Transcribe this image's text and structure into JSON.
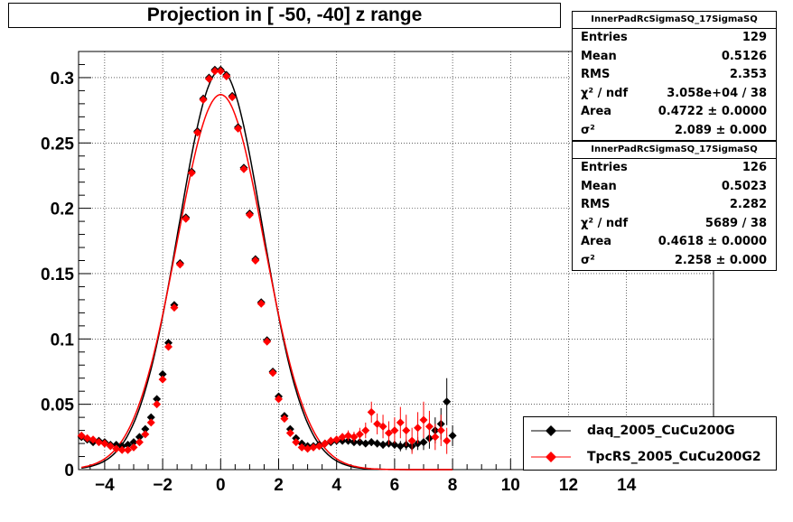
{
  "title": "Projection in [ -50, -40] z range",
  "stats": [
    {
      "header": "InnerPadRcSigmaSQ_17SigmaSQ",
      "rows": [
        {
          "label": "Entries",
          "value": "129"
        },
        {
          "label": "Mean",
          "value": "0.5126"
        },
        {
          "label": "RMS",
          "value": "2.353"
        },
        {
          "label": "χ² / ndf",
          "value": "3.058e+04 / 38"
        },
        {
          "label": "Area",
          "value": "0.4722 ± 0.0000"
        },
        {
          "label": "σ²",
          "value": "2.089 ± 0.000"
        }
      ]
    },
    {
      "header": "InnerPadRcSigmaSQ_17SigmaSQ",
      "rows": [
        {
          "label": "Entries",
          "value": "126"
        },
        {
          "label": "Mean",
          "value": "0.5023"
        },
        {
          "label": "RMS",
          "value": "2.282"
        },
        {
          "label": "χ² / ndf",
          "value": "5689 / 38"
        },
        {
          "label": "Area",
          "value": "0.4618 ± 0.0000"
        },
        {
          "label": "σ²",
          "value": "2.258 ± 0.000"
        }
      ]
    }
  ],
  "legend": [
    {
      "name": "daq_2005_CuCu200G",
      "color": "#000000"
    },
    {
      "name": "TpcRS_2005_CuCu200G2",
      "color": "#ff0000"
    }
  ],
  "chart_data": {
    "type": "scatter",
    "title": "Projection in [ -50, -40] z range",
    "xlabel": "",
    "ylabel": "",
    "xlim": [
      -4.9,
      17
    ],
    "ylim": [
      0,
      0.32
    ],
    "grid": true,
    "legend_position": "bottom-right",
    "x_ticks": [
      -4,
      -2,
      0,
      2,
      4,
      6,
      8,
      10,
      12,
      14
    ],
    "y_ticks": [
      0,
      0.05,
      0.1,
      0.15,
      0.2,
      0.25,
      0.3
    ],
    "y_tick_labels": [
      "0",
      "0.05",
      "0.1",
      "0.15",
      "0.2",
      "0.25",
      "0.3"
    ],
    "series": [
      {
        "name": "daq_2005_CuCu200G",
        "color": "#000000",
        "x": [
          -4.8,
          -4.6,
          -4.4,
          -4.2,
          -4.0,
          -3.8,
          -3.6,
          -3.4,
          -3.2,
          -3.0,
          -2.8,
          -2.6,
          -2.4,
          -2.2,
          -2.0,
          -1.8,
          -1.6,
          -1.4,
          -1.2,
          -1.0,
          -0.8,
          -0.6,
          -0.4,
          -0.2,
          0.0,
          0.2,
          0.4,
          0.6,
          0.8,
          1.0,
          1.2,
          1.4,
          1.6,
          1.8,
          2.0,
          2.2,
          2.4,
          2.6,
          2.8,
          3.0,
          3.2,
          3.4,
          3.6,
          3.8,
          4.0,
          4.2,
          4.4,
          4.6,
          4.8,
          5.0,
          5.2,
          5.4,
          5.6,
          5.8,
          6.0,
          6.2,
          6.4,
          6.6,
          6.8,
          7.0,
          7.2,
          7.4,
          7.6,
          7.8,
          8.0
        ],
        "y": [
          0.025,
          0.023,
          0.021,
          0.022,
          0.021,
          0.019,
          0.019,
          0.018,
          0.019,
          0.021,
          0.025,
          0.031,
          0.04,
          0.054,
          0.073,
          0.097,
          0.126,
          0.158,
          0.193,
          0.228,
          0.259,
          0.284,
          0.3,
          0.306,
          0.306,
          0.302,
          0.286,
          0.262,
          0.231,
          0.196,
          0.161,
          0.128,
          0.099,
          0.075,
          0.056,
          0.041,
          0.031,
          0.024,
          0.02,
          0.018,
          0.018,
          0.019,
          0.02,
          0.021,
          0.022,
          0.022,
          0.022,
          0.021,
          0.021,
          0.02,
          0.021,
          0.02,
          0.019,
          0.02,
          0.019,
          0.018,
          0.019,
          0.018,
          0.02,
          0.021,
          0.024,
          0.03,
          0.035,
          0.052,
          0.026
        ],
        "err": [
          0.002,
          0.002,
          0.002,
          0.002,
          0.002,
          0.002,
          0.002,
          0.002,
          0.002,
          0.002,
          0.002,
          0.002,
          0.002,
          0.002,
          0.002,
          0.002,
          0.002,
          0.002,
          0.002,
          0.002,
          0.002,
          0.002,
          0.002,
          0.002,
          0.002,
          0.002,
          0.002,
          0.002,
          0.002,
          0.002,
          0.002,
          0.002,
          0.002,
          0.002,
          0.002,
          0.002,
          0.002,
          0.002,
          0.002,
          0.002,
          0.002,
          0.002,
          0.002,
          0.002,
          0.002,
          0.002,
          0.002,
          0.002,
          0.002,
          0.002,
          0.003,
          0.003,
          0.003,
          0.003,
          0.003,
          0.004,
          0.004,
          0.004,
          0.005,
          0.006,
          0.008,
          0.01,
          0.012,
          0.018,
          0.008
        ]
      },
      {
        "name": "TpcRS_2005_CuCu200G2",
        "color": "#ff0000",
        "x": [
          -4.8,
          -4.6,
          -4.4,
          -4.2,
          -4.0,
          -3.8,
          -3.6,
          -3.4,
          -3.2,
          -3.0,
          -2.8,
          -2.6,
          -2.4,
          -2.2,
          -2.0,
          -1.8,
          -1.6,
          -1.4,
          -1.2,
          -1.0,
          -0.8,
          -0.6,
          -0.4,
          -0.2,
          0.0,
          0.2,
          0.4,
          0.6,
          0.8,
          1.0,
          1.2,
          1.4,
          1.6,
          1.8,
          2.0,
          2.2,
          2.4,
          2.6,
          2.8,
          3.0,
          3.2,
          3.4,
          3.6,
          3.8,
          4.0,
          4.2,
          4.4,
          4.6,
          4.8,
          5.0,
          5.2,
          5.4,
          5.6,
          5.8,
          6.0,
          6.2,
          6.4,
          6.6,
          6.8,
          7.0,
          7.2,
          7.4,
          7.6,
          7.8
        ],
        "y": [
          0.026,
          0.024,
          0.023,
          0.021,
          0.02,
          0.018,
          0.016,
          0.015,
          0.015,
          0.017,
          0.021,
          0.027,
          0.036,
          0.05,
          0.069,
          0.094,
          0.124,
          0.157,
          0.192,
          0.227,
          0.258,
          0.283,
          0.299,
          0.305,
          0.305,
          0.301,
          0.285,
          0.261,
          0.23,
          0.195,
          0.16,
          0.127,
          0.098,
          0.074,
          0.054,
          0.039,
          0.028,
          0.021,
          0.017,
          0.016,
          0.017,
          0.018,
          0.02,
          0.022,
          0.023,
          0.025,
          0.026,
          0.025,
          0.027,
          0.03,
          0.044,
          0.035,
          0.033,
          0.028,
          0.03,
          0.036,
          0.03,
          0.022,
          0.032,
          0.038,
          0.033,
          0.025,
          0.03,
          0.022
        ],
        "err": [
          0.002,
          0.002,
          0.002,
          0.002,
          0.002,
          0.002,
          0.002,
          0.002,
          0.002,
          0.002,
          0.002,
          0.002,
          0.002,
          0.002,
          0.002,
          0.002,
          0.002,
          0.002,
          0.002,
          0.002,
          0.002,
          0.002,
          0.002,
          0.002,
          0.002,
          0.002,
          0.002,
          0.002,
          0.002,
          0.002,
          0.002,
          0.002,
          0.002,
          0.002,
          0.002,
          0.002,
          0.002,
          0.002,
          0.002,
          0.002,
          0.002,
          0.002,
          0.002,
          0.003,
          0.003,
          0.003,
          0.004,
          0.004,
          0.005,
          0.006,
          0.008,
          0.008,
          0.009,
          0.009,
          0.01,
          0.012,
          0.012,
          0.01,
          0.012,
          0.014,
          0.012,
          0.01,
          0.012,
          0.01
        ]
      }
    ],
    "fits": [
      {
        "series": "daq_2005_CuCu200G",
        "color": "#000000",
        "peak": 0.306,
        "sigma2": 2.089,
        "base": 0.0
      },
      {
        "series": "TpcRS_2005_CuCu200G2",
        "color": "#ff0000",
        "peak": 0.287,
        "sigma2": 2.258,
        "base": 0.0
      }
    ]
  }
}
